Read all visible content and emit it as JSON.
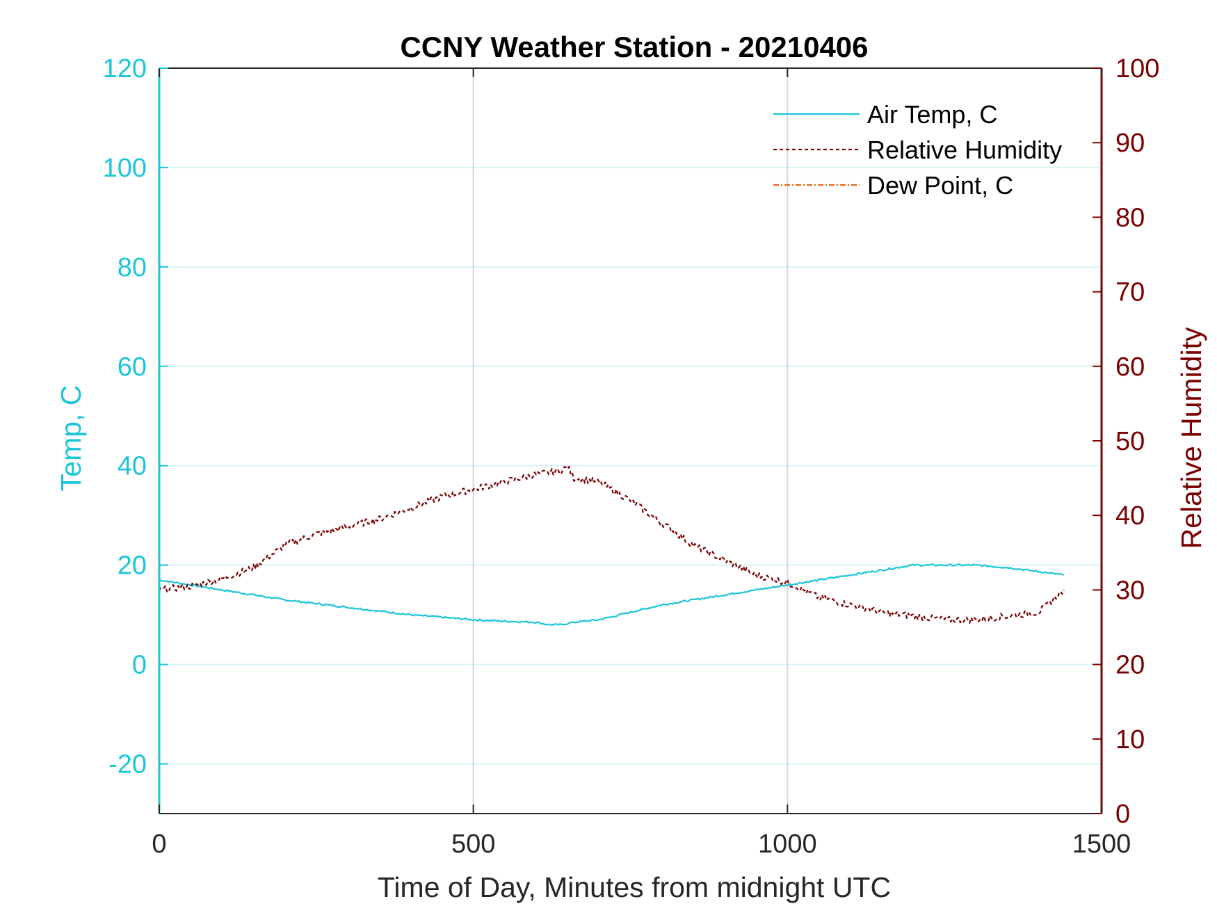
{
  "chart_data": {
    "type": "line",
    "title": "CCNY Weather Station - 20210406",
    "xlabel": "Time of Day, Minutes from midnight UTC",
    "ylabel_left": "Temp, C",
    "ylabel_right": "Relative Humidity",
    "xlim": [
      0,
      1500
    ],
    "ylim_left": [
      -30,
      120
    ],
    "ylim_right": [
      0,
      100
    ],
    "x_ticks": [
      "0",
      "500",
      "1000",
      "1500"
    ],
    "x_tick_values": [
      0,
      500,
      1000,
      1500
    ],
    "y_left_ticks": [
      "-20",
      "0",
      "20",
      "40",
      "60",
      "80",
      "100",
      "120"
    ],
    "y_left_tick_values": [
      -20,
      0,
      20,
      40,
      60,
      80,
      100,
      120
    ],
    "y_right_ticks": [
      "0",
      "10",
      "20",
      "30",
      "40",
      "50",
      "60",
      "70",
      "80",
      "90",
      "100"
    ],
    "y_right_tick_values": [
      0,
      10,
      20,
      30,
      40,
      50,
      60,
      70,
      80,
      90,
      100
    ],
    "grid": true,
    "legend_position": "top-right",
    "colors": {
      "temp": "#1BC5DA",
      "humidity": "#7A0000",
      "dewpoint": "#E8651A",
      "x_grid": "#D0D7DE",
      "y_grid": "#D8F4F8",
      "axis_dark": "#262626"
    },
    "series": [
      {
        "name": "Air Temp, C",
        "axis": "left",
        "style": "solid",
        "x": [
          0,
          100,
          200,
          300,
          400,
          450,
          500,
          550,
          600,
          620,
          640,
          660,
          700,
          750,
          800,
          850,
          900,
          950,
          1000,
          1050,
          1100,
          1150,
          1200,
          1250,
          1300,
          1350,
          1400,
          1440
        ],
        "y": [
          17,
          15,
          13,
          11.5,
          10,
          9.5,
          9,
          8.7,
          8.5,
          8,
          8,
          8.5,
          9,
          10.5,
          12,
          13,
          14,
          15,
          16,
          17,
          18,
          19,
          20,
          20,
          20,
          19.5,
          18.7,
          18
        ]
      },
      {
        "name": "Relative Humidity",
        "axis": "right",
        "style": "dashed",
        "x": [
          0,
          50,
          100,
          150,
          200,
          250,
          300,
          350,
          400,
          450,
          500,
          550,
          600,
          640,
          650,
          660,
          700,
          750,
          800,
          850,
          900,
          950,
          1000,
          1050,
          1100,
          1150,
          1200,
          1250,
          1300,
          1350,
          1400,
          1440
        ],
        "y": [
          30,
          30.5,
          31.5,
          33,
          36,
          37.5,
          38.5,
          39.5,
          41,
          42.5,
          43.5,
          44.5,
          45.5,
          46,
          46.5,
          45,
          44.5,
          42,
          39,
          36,
          34,
          32,
          31,
          29,
          28,
          27,
          26.5,
          26,
          26,
          26.5,
          27,
          30
        ]
      },
      {
        "name": "Dew Point, C",
        "axis": "left",
        "style": "dashdot",
        "x": [],
        "y": []
      }
    ]
  }
}
